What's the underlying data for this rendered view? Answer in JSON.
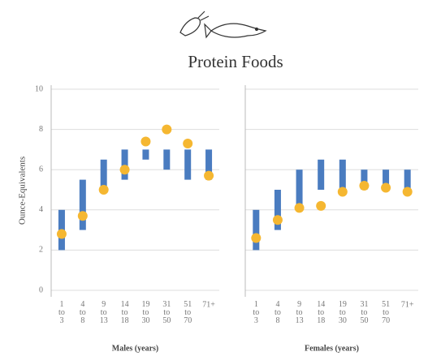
{
  "title": "Protein Foods",
  "chart_data": [
    {
      "type": "range",
      "xlabel": "Males (years)",
      "ylabel": "Ounce-Equivalents",
      "categories": [
        "1 to 3",
        "4 to 8",
        "9 to 13",
        "14 to 18",
        "19 to 30",
        "31 to 50",
        "51 to 70",
        "71+"
      ],
      "ranges": {
        "color": "#4a7cc0",
        "low": [
          2,
          3,
          5,
          5.5,
          6.5,
          6,
          5.5,
          5.5
        ],
        "high": [
          4,
          5.5,
          6.5,
          7,
          7,
          7,
          7,
          7
        ]
      },
      "dots": {
        "color": "#f5b731",
        "values": [
          2.8,
          3.7,
          5.0,
          6.0,
          7.4,
          8.0,
          7.3,
          5.7
        ]
      },
      "ylim": [
        0,
        10
      ],
      "yticks": [
        0,
        2,
        4,
        6,
        8,
        10
      ],
      "grid": true,
      "tick_labels": true
    },
    {
      "type": "range",
      "xlabel": "Females (years)",
      "categories": [
        "1 to 3",
        "4 to 8",
        "9 to 13",
        "14 to 18",
        "19 to 30",
        "31 to 50",
        "51 to 70",
        "71+"
      ],
      "ranges": {
        "color": "#4a7cc0",
        "low": [
          2,
          3,
          4,
          5,
          5,
          5,
          5,
          5
        ],
        "high": [
          4,
          5,
          6,
          6.5,
          6.5,
          6,
          6,
          6
        ]
      },
      "dots": {
        "color": "#f5b731",
        "values": [
          2.6,
          3.5,
          4.1,
          4.2,
          4.9,
          5.2,
          5.1,
          4.9
        ]
      },
      "ylim": [
        0,
        10
      ],
      "yticks": [
        0,
        2,
        4,
        6,
        8,
        10
      ],
      "grid": true,
      "tick_labels": false
    }
  ]
}
